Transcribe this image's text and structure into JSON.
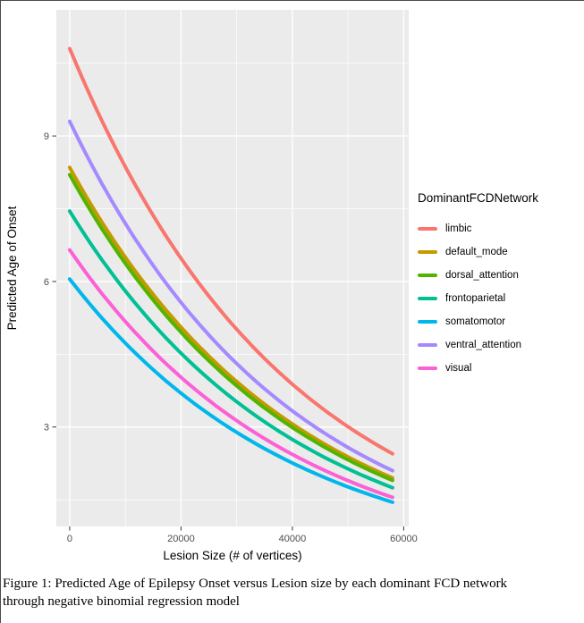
{
  "figure": {
    "caption_line1": "Figure 1: Predicted Age of Epilepsy Onset versus Lesion size by each dominant FCD network",
    "caption_line2": "through negative binomial regression model"
  },
  "chart_data": {
    "type": "line",
    "title": "",
    "xlabel": "Lesion Size (# of vertices)",
    "ylabel": "Predicted Age of Onset",
    "legend_title": "DominantFCDNetwork",
    "legend_position": "right",
    "grid": true,
    "x_ticks": [
      0,
      20000,
      40000,
      60000
    ],
    "x_tick_labels": [
      "0",
      "20000",
      "40000",
      "60000"
    ],
    "y_ticks": [
      3,
      6,
      9
    ],
    "y_tick_labels": [
      "3",
      "6",
      "9"
    ],
    "x_minor_ticks": [
      10000,
      30000,
      50000
    ],
    "y_minor_ticks": [
      1.5,
      4.5,
      7.5,
      10.5
    ],
    "xlim": [
      -2400,
      60900
    ],
    "ylim": [
      0.95,
      11.6
    ],
    "x_data_range": [
      0,
      58000
    ],
    "curve_shape": "exponential-decay",
    "panel_bg": "#EBEBEB",
    "grid_color": "#FFFFFF",
    "tick_text_color": "#4D4D4D",
    "series": [
      {
        "name": "limbic",
        "color": "#F8766D",
        "y_at_x0": 10.8,
        "y_at_xmax": 2.45
      },
      {
        "name": "default_mode",
        "color": "#C49A00",
        "y_at_x0": 8.35,
        "y_at_xmax": 1.95
      },
      {
        "name": "dorsal_attention",
        "color": "#53B400",
        "y_at_x0": 8.2,
        "y_at_xmax": 1.9
      },
      {
        "name": "frontoparietal",
        "color": "#00C094",
        "y_at_x0": 7.45,
        "y_at_xmax": 1.75
      },
      {
        "name": "somatomotor",
        "color": "#00B6EB",
        "y_at_x0": 6.05,
        "y_at_xmax": 1.45
      },
      {
        "name": "ventral_attention",
        "color": "#A58AFF",
        "y_at_x0": 9.3,
        "y_at_xmax": 2.1
      },
      {
        "name": "visual",
        "color": "#FB61D7",
        "y_at_x0": 6.65,
        "y_at_xmax": 1.55
      }
    ],
    "draw_order": [
      1,
      2,
      3,
      4,
      6,
      5,
      0
    ]
  }
}
